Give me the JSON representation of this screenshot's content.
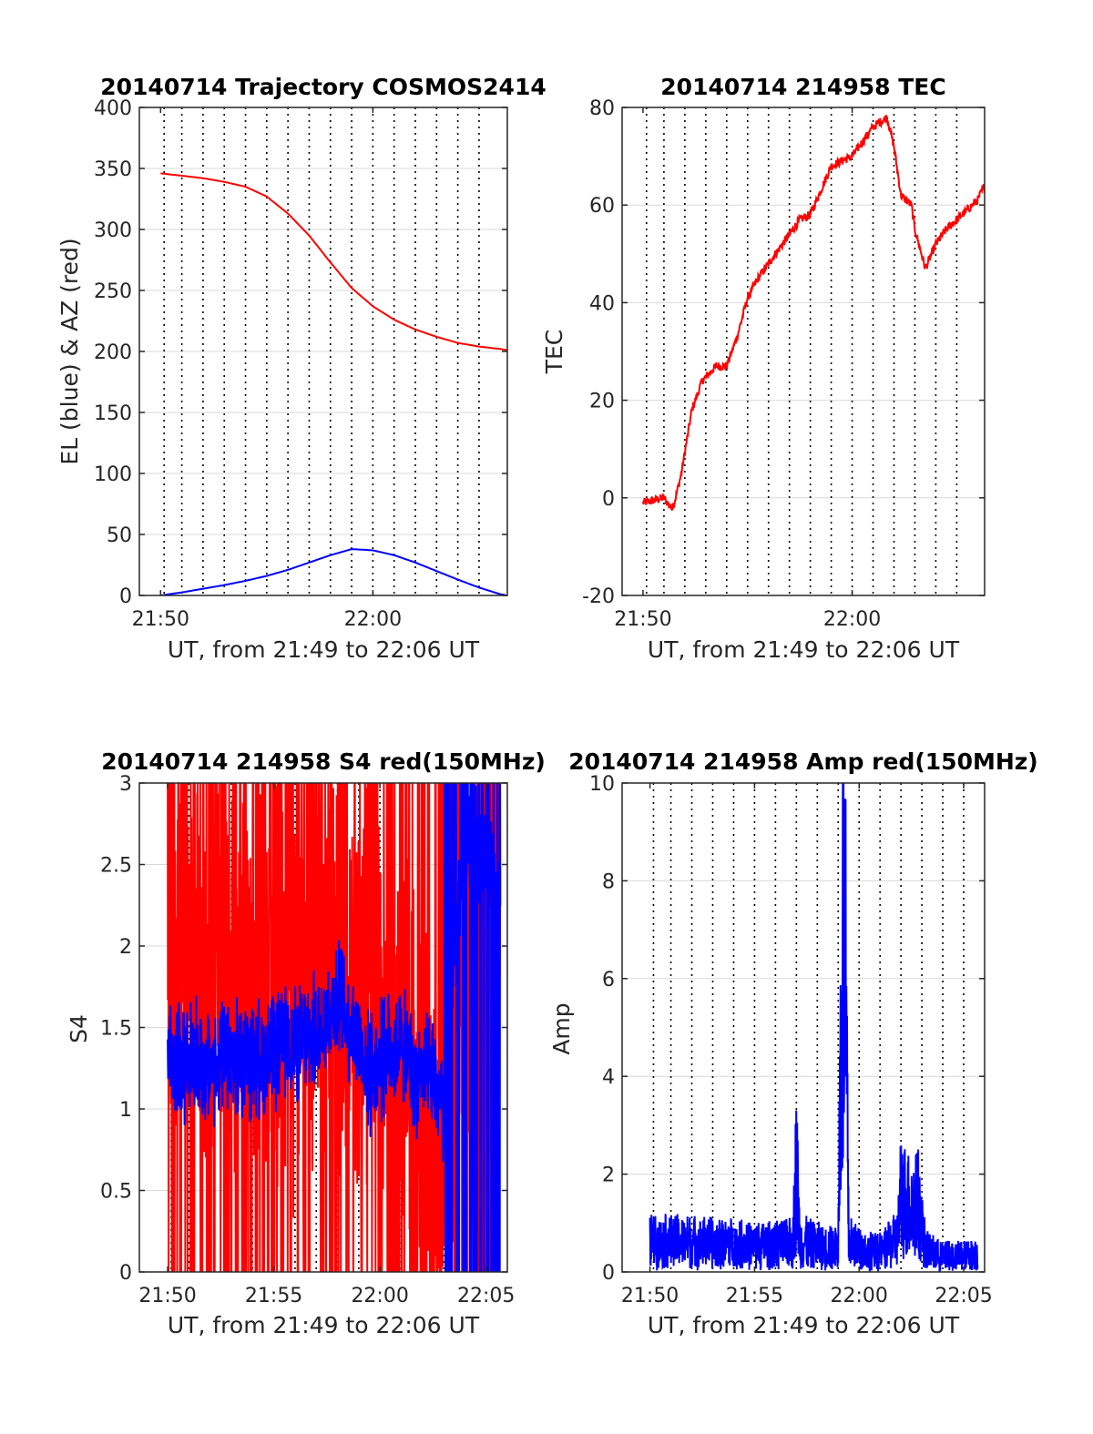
{
  "figure": {
    "background": "#ffffff",
    "axis_color": "#262626",
    "grid_color": "#d9d9d9",
    "vline_color": "#000000"
  },
  "chart_data": [
    {
      "id": "trajectory",
      "type": "line",
      "title": "20140714 Trajectory COSMOS2414",
      "xlabel": "UT, from 21:49 to 22:06 UT",
      "ylabel": "EL (blue) & AZ (red)",
      "xlim": [
        "21:49:00",
        "22:06:20"
      ],
      "ylim": [
        0,
        400
      ],
      "yticks": [
        0,
        50,
        100,
        150,
        200,
        250,
        300,
        350,
        400
      ],
      "xticks": [
        {
          "t": "21:50:00",
          "label": "21:50"
        },
        {
          "t": "22:00:00",
          "label": "22:00"
        }
      ],
      "grid": "horizontal",
      "vertical_markers": [
        "21:50:10",
        "21:51:00",
        "21:52:00",
        "21:53:00",
        "21:54:00",
        "21:55:00",
        "21:56:00",
        "21:57:00",
        "21:58:00",
        "21:59:00",
        "22:00:00",
        "22:01:00",
        "22:02:00",
        "22:03:00",
        "22:04:00",
        "22:05:00"
      ],
      "series": [
        {
          "name": "AZ",
          "color": "#ff0000",
          "x": [
            "21:50:00",
            "21:51:00",
            "21:52:00",
            "21:53:00",
            "21:54:00",
            "21:55:00",
            "21:56:00",
            "21:57:00",
            "21:58:00",
            "21:59:00",
            "22:00:00",
            "22:01:00",
            "22:02:00",
            "22:03:00",
            "22:04:00",
            "22:05:00",
            "22:06:00",
            "22:06:20"
          ],
          "values": [
            346,
            344,
            342,
            339,
            335,
            327,
            313,
            295,
            273,
            252,
            237,
            226,
            218,
            212,
            207,
            204,
            202,
            201
          ]
        },
        {
          "name": "EL",
          "color": "#0000ff",
          "x": [
            "21:50:00",
            "21:51:00",
            "21:52:00",
            "21:53:00",
            "21:54:00",
            "21:55:00",
            "21:56:00",
            "21:57:00",
            "21:58:00",
            "21:59:00",
            "22:00:00",
            "22:01:00",
            "22:02:00",
            "22:03:00",
            "22:04:00",
            "22:05:00",
            "22:06:00",
            "22:06:20"
          ],
          "values": [
            0,
            2.5,
            5.5,
            8.5,
            12,
            16,
            21,
            27,
            33,
            38,
            37,
            33,
            27,
            20,
            13,
            6.5,
            1,
            0
          ]
        }
      ]
    },
    {
      "id": "tec",
      "type": "line",
      "title": "20140714 214958 TEC",
      "xlabel": "UT, from 21:49 to 22:06 UT",
      "ylabel": "TEC",
      "xlim": [
        "21:49:00",
        "22:06:20"
      ],
      "ylim": [
        -20,
        80
      ],
      "yticks": [
        -20,
        0,
        20,
        40,
        60,
        80
      ],
      "xticks": [
        {
          "t": "21:50:00",
          "label": "21:50"
        },
        {
          "t": "22:00:00",
          "label": "22:00"
        }
      ],
      "grid": "horizontal",
      "vertical_markers": [
        "21:50:10",
        "21:51:00",
        "21:52:00",
        "21:53:00",
        "21:54:00",
        "21:55:00",
        "21:56:00",
        "21:57:00",
        "21:58:00",
        "21:59:00",
        "22:00:00",
        "22:01:00",
        "22:02:00",
        "22:03:00",
        "22:04:00",
        "22:05:00"
      ],
      "series": [
        {
          "name": "TEC",
          "color": "#ff0000",
          "noise": 0.9,
          "x": [
            "21:50:00",
            "21:51:00",
            "21:51:20",
            "21:51:30",
            "21:51:50",
            "21:52:20",
            "21:52:50",
            "21:53:30",
            "21:54:00",
            "21:54:30",
            "21:55:00",
            "21:55:30",
            "21:56:00",
            "21:56:30",
            "21:57:00",
            "21:57:30",
            "21:58:00",
            "21:58:30",
            "21:59:00",
            "21:59:30",
            "22:00:00",
            "22:00:40",
            "22:01:00",
            "22:01:40",
            "22:02:00",
            "22:02:20",
            "22:02:50",
            "22:03:00",
            "22:03:30",
            "22:04:00",
            "22:04:30",
            "22:05:00",
            "22:05:30",
            "22:06:00",
            "22:06:20"
          ],
          "values": [
            -1,
            0,
            -2,
            -1,
            5,
            18,
            24,
            27,
            27,
            33,
            41,
            45,
            48,
            51,
            54,
            57,
            58,
            63,
            68,
            69,
            70,
            74,
            76,
            78,
            72,
            62,
            60,
            55,
            47,
            52,
            55,
            57,
            59,
            61,
            64
          ]
        }
      ]
    },
    {
      "id": "s4",
      "type": "line",
      "title": "20140714 214958 S4 red(150MHz)",
      "xlabel": "UT, from 21:49 to 22:06 UT",
      "ylabel": "S4",
      "xlim": [
        "21:48:40",
        "22:06:00"
      ],
      "ylim": [
        0,
        3
      ],
      "yticks": [
        0,
        0.5,
        1,
        1.5,
        2,
        2.5,
        3
      ],
      "xticks": [
        {
          "t": "21:50:00",
          "label": "21:50"
        },
        {
          "t": "21:55:00",
          "label": "21:55"
        },
        {
          "t": "22:00:00",
          "label": "22:00"
        },
        {
          "t": "22:05:00",
          "label": "22:05"
        }
      ],
      "grid": "horizontal",
      "vertical_markers": [
        "21:50:10",
        "21:51:00",
        "21:52:00",
        "21:53:00",
        "21:54:00",
        "21:55:00",
        "21:56:00",
        "21:57:00",
        "21:58:00",
        "21:59:00",
        "22:00:00",
        "22:01:00",
        "22:02:00",
        "22:03:00",
        "22:04:00",
        "22:05:00"
      ],
      "series": [
        {
          "name": "",
          "color": "#ff0000",
          "x": [
            "21:50:00",
            "21:51:00",
            "21:52:00",
            "21:53:00",
            "21:54:00",
            "21:55:00",
            "21:56:00",
            "21:57:00",
            "21:58:00",
            "21:59:00",
            "22:00:00",
            "22:01:00",
            "22:01:40",
            "22:02:00",
            "22:02:30",
            "22:03:00",
            "22:04:00",
            "22:05:00",
            "22:05:40"
          ],
          "values": [
            2.0,
            1.9,
            2.0,
            2.0,
            1.9,
            1.8,
            1.7,
            1.8,
            1.8,
            1.7,
            1.6,
            1.3,
            1.3,
            0.75,
            0.7,
            0.7,
            2.0,
            2.0,
            2.0
          ],
          "spread": 1.0
        },
        {
          "name": "",
          "color": "#0000ff",
          "x": [
            "21:50:00",
            "21:51:00",
            "21:52:00",
            "21:53:00",
            "21:54:00",
            "21:55:00",
            "21:56:00",
            "21:57:00",
            "21:58:00",
            "21:59:00",
            "21:59:30",
            "22:00:00",
            "22:01:00",
            "22:01:40",
            "22:02:00",
            "22:02:30",
            "22:03:00",
            "22:04:00",
            "22:05:00",
            "22:05:40"
          ],
          "values": [
            1.3,
            1.3,
            1.25,
            1.3,
            1.3,
            1.35,
            1.4,
            1.45,
            1.7,
            1.4,
            1.2,
            1.3,
            1.4,
            1.2,
            1.2,
            1.2,
            1.0,
            2.8,
            2.5,
            2.3
          ],
          "spread": 0.28
        }
      ]
    },
    {
      "id": "amp",
      "type": "line",
      "title": "20140714 214958 Amp red(150MHz)",
      "xlabel": "UT, from 21:49 to 22:06 UT",
      "ylabel": "Amp",
      "xlim": [
        "21:48:40",
        "22:06:00"
      ],
      "ylim": [
        0,
        10
      ],
      "yticks": [
        0,
        2,
        4,
        6,
        8,
        10
      ],
      "xticks": [
        {
          "t": "21:50:00",
          "label": "21:50"
        },
        {
          "t": "21:55:00",
          "label": "21:55"
        },
        {
          "t": "22:00:00",
          "label": "22:00"
        },
        {
          "t": "22:05:00",
          "label": "22:05"
        }
      ],
      "grid": "horizontal",
      "vertical_markers": [
        "21:50:10",
        "21:51:00",
        "21:52:00",
        "21:53:00",
        "21:54:00",
        "21:55:00",
        "21:56:00",
        "21:57:00",
        "21:58:00",
        "21:59:00",
        "22:00:00",
        "22:01:00",
        "22:02:00",
        "22:03:00",
        "22:04:00",
        "22:05:00"
      ],
      "series": [
        {
          "name": "",
          "color": "#0000ff",
          "x": [
            "21:50:00",
            "21:51:00",
            "21:52:00",
            "21:53:00",
            "21:54:00",
            "21:55:00",
            "21:56:00",
            "21:56:50",
            "21:57:00",
            "21:57:10",
            "21:58:00",
            "21:59:00",
            "21:59:10",
            "21:59:20",
            "21:59:30",
            "22:00:00",
            "22:01:00",
            "22:01:50",
            "22:02:00",
            "22:02:30",
            "22:02:50",
            "22:03:10",
            "22:04:00",
            "22:05:00",
            "22:05:40"
          ],
          "values": [
            0.9,
            0.9,
            0.9,
            0.85,
            0.85,
            0.8,
            0.8,
            0.9,
            2.9,
            0.9,
            0.8,
            0.7,
            8.4,
            8.2,
            0.9,
            0.7,
            0.6,
            1.0,
            2.2,
            1.8,
            1.9,
            0.7,
            0.5,
            0.5,
            0.6
          ],
          "spread": 0.55
        }
      ]
    }
  ]
}
